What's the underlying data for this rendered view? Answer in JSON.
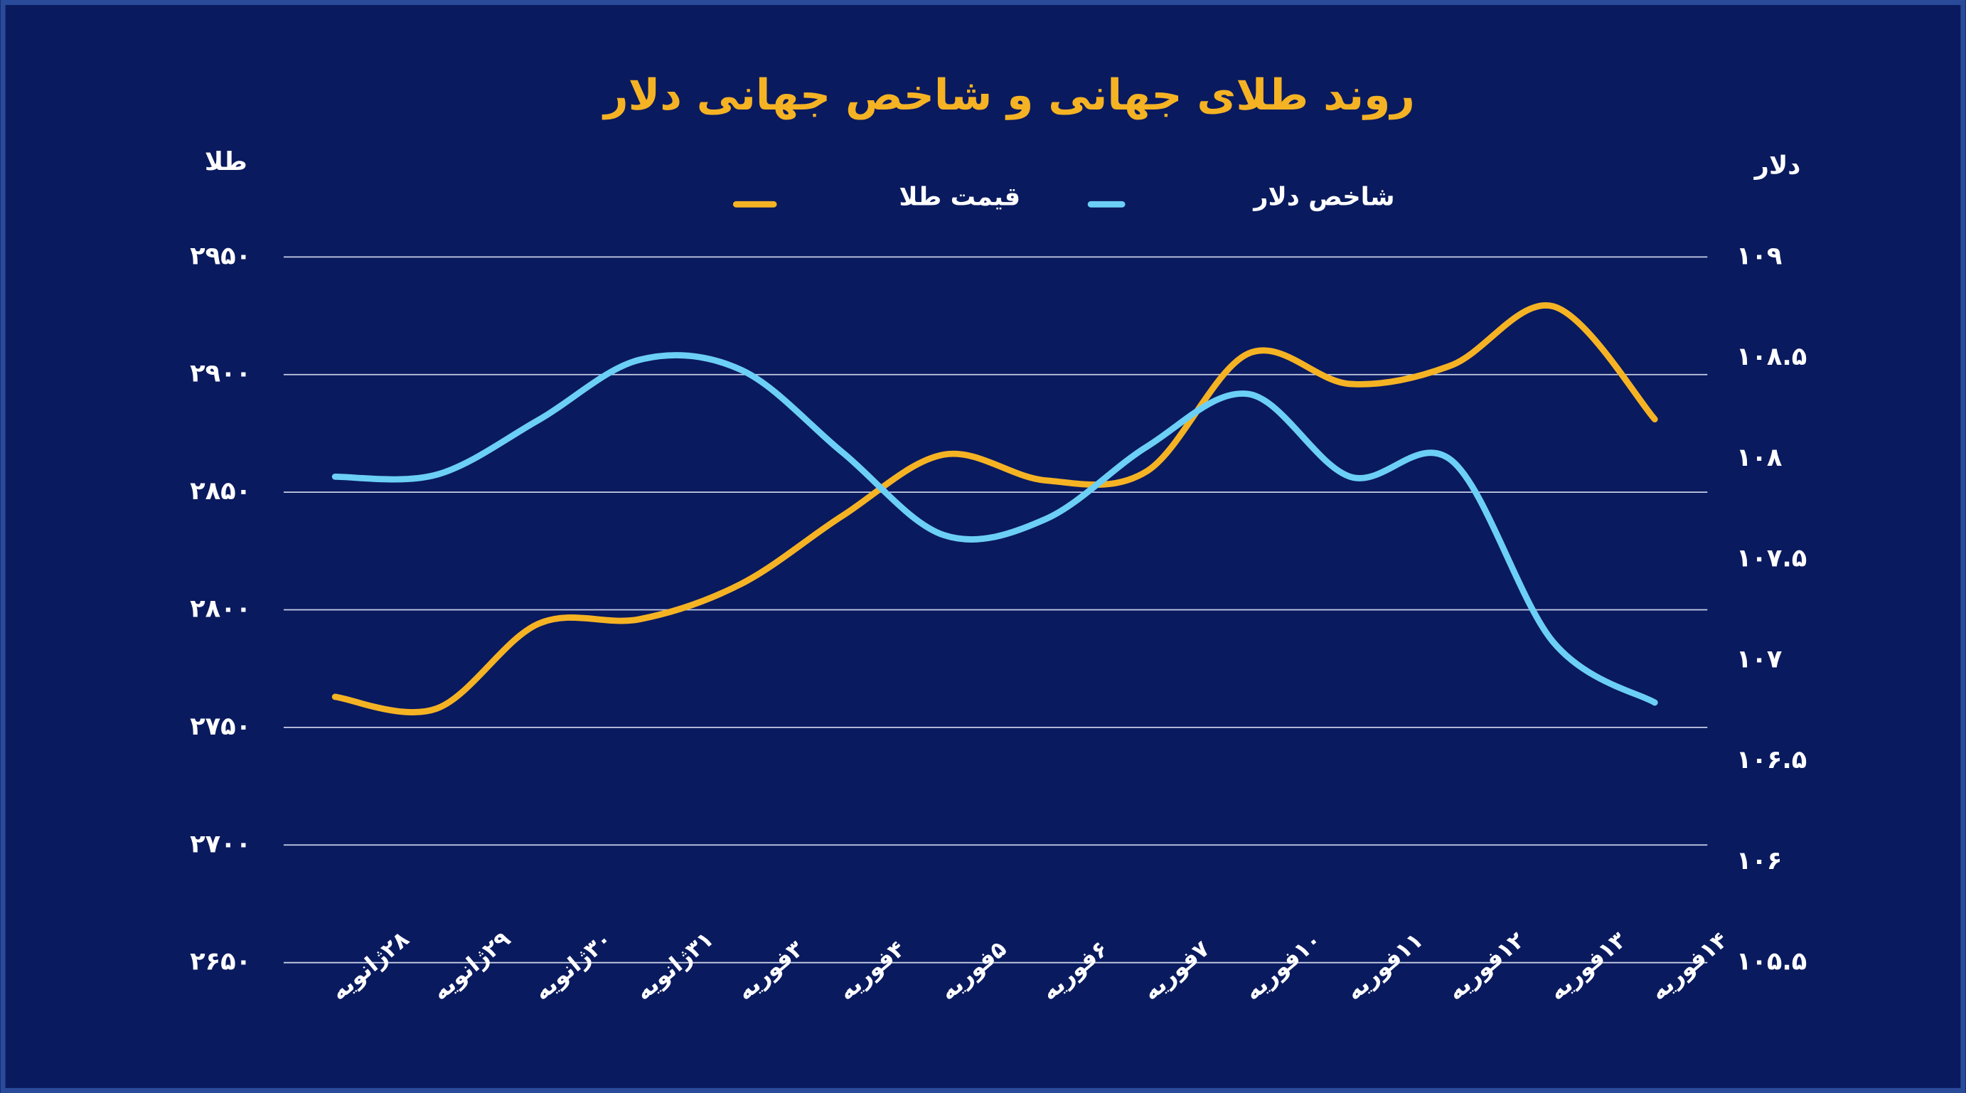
{
  "chart_data": {
    "type": "line",
    "title": "روند طلای جهانی و شاخص جهانی دلار",
    "y_label": "طلا",
    "y2_label": "دلار",
    "categories": [
      "۲۸ژانویه",
      "۲۹ژانویه",
      "۳۰ژانویه",
      "۳۱ژانویه",
      "۳فوریه",
      "۴فوریه",
      "۵فوریه",
      "۶فوریه",
      "۷فوریه",
      "۱۰فوریه",
      "۱۱فوریه",
      "۱۲فوریه",
      "۱۳فوریه",
      "۱۴فوریه"
    ],
    "series": [
      {
        "name": "قیمت طلا",
        "color": "#f5b324",
        "values": [
          2763,
          2758,
          2794,
          2796,
          2811,
          2840,
          2866,
          2855,
          2859,
          2909,
          2896,
          2904,
          2929,
          2881
        ]
      },
      {
        "name": "شاخص دلار",
        "color": "#6ccff6",
        "axis": "y2",
        "values": [
          107.91,
          107.92,
          108.19,
          108.49,
          108.44,
          108.03,
          107.62,
          107.7,
          108.06,
          108.32,
          107.91,
          107.99,
          107.09,
          106.79
        ]
      }
    ],
    "ylim": [
      2650,
      2950
    ],
    "yticks": [
      {
        "value": 2650,
        "label": "۲۶۵۰"
      },
      {
        "value": 2700,
        "label": "۲۷۰۰"
      },
      {
        "value": 2750,
        "label": "۲۷۵۰"
      },
      {
        "value": 2800,
        "label": "۲۸۰۰"
      },
      {
        "value": 2850,
        "label": "۲۸۵۰"
      },
      {
        "value": 2900,
        "label": "۲۹۰۰"
      },
      {
        "value": 2950,
        "label": "۲۹۵۰"
      }
    ],
    "y2lim": [
      105.5,
      109
    ],
    "y2ticks": [
      {
        "value": 105.5,
        "label": "۱۰۵.۵"
      },
      {
        "value": 106,
        "label": "۱۰۶"
      },
      {
        "value": 106.5,
        "label": "۱۰۶.۵"
      },
      {
        "value": 107,
        "label": "۱۰۷"
      },
      {
        "value": 107.5,
        "label": "۱۰۷.۵"
      },
      {
        "value": 108,
        "label": "۱۰۸"
      },
      {
        "value": 108.5,
        "label": "۱۰۸.۵"
      },
      {
        "value": 109,
        "label": "۱۰۹"
      }
    ],
    "grid": true
  }
}
